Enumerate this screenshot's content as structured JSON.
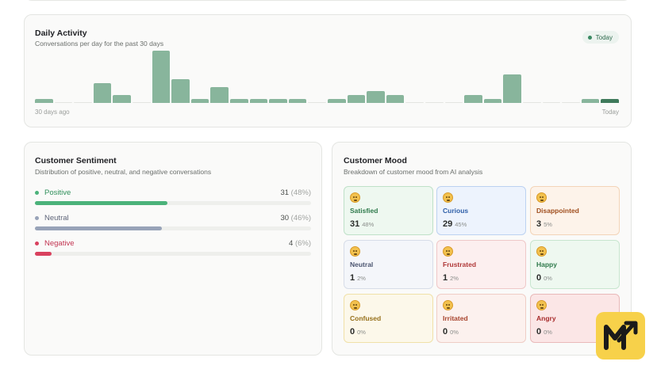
{
  "activity": {
    "title": "Daily Activity",
    "subtitle": "Conversations per day for the past 30 days",
    "badge": "Today",
    "axis_left": "30 days ago",
    "axis_right": "Today",
    "values": [
      1,
      0,
      0,
      5,
      2,
      0,
      13,
      6,
      1,
      4,
      1,
      1,
      1,
      1,
      0,
      1,
      2,
      3,
      2,
      0,
      0,
      0,
      2,
      1,
      7,
      0,
      0,
      0,
      1,
      1
    ],
    "max": 13
  },
  "sentiment": {
    "title": "Customer Sentiment",
    "subtitle": "Distribution of positive, neutral, and negative conversations",
    "rows": [
      {
        "label": "Positive",
        "count": "31",
        "pct": "(48%)",
        "fraction": 0.48,
        "color": "#4bb27a",
        "text_color": "#2f8f5a"
      },
      {
        "label": "Neutral",
        "count": "30",
        "pct": "(46%)",
        "fraction": 0.46,
        "color": "#98a3b8",
        "text_color": "#5d6478"
      },
      {
        "label": "Negative",
        "count": "4",
        "pct": "(6%)",
        "fraction": 0.06,
        "color": "#d9415e",
        "text_color": "#c23350"
      }
    ]
  },
  "mood": {
    "title": "Customer Mood",
    "subtitle": "Breakdown of customer mood from AI analysis",
    "tiles": [
      {
        "name": "Satisfied",
        "count": "31",
        "pct": "48%",
        "bg": "#eef8f0",
        "border": "#bfe1c8",
        "color": "#2e7a4b"
      },
      {
        "name": "Curious",
        "count": "29",
        "pct": "45%",
        "bg": "#edf3fd",
        "border": "#bcd2f1",
        "color": "#2e5ea8"
      },
      {
        "name": "Disappointed",
        "count": "3",
        "pct": "5%",
        "bg": "#fdf3ea",
        "border": "#f3d4b8",
        "color": "#a04e1e"
      },
      {
        "name": "Neutral",
        "count": "1",
        "pct": "2%",
        "bg": "#f4f6fa",
        "border": "#d7dde8",
        "color": "#4b5570"
      },
      {
        "name": "Frustrated",
        "count": "1",
        "pct": "2%",
        "bg": "#fcefef",
        "border": "#efc8c8",
        "color": "#b03838"
      },
      {
        "name": "Happy",
        "count": "0",
        "pct": "0%",
        "bg": "#eef8f0",
        "border": "#c8e6cf",
        "color": "#2e7a4b"
      },
      {
        "name": "Confused",
        "count": "0",
        "pct": "0%",
        "bg": "#fcf8ea",
        "border": "#f0e1a8",
        "color": "#96701a"
      },
      {
        "name": "Irritated",
        "count": "0",
        "pct": "0%",
        "bg": "#fcf1ee",
        "border": "#efcdc5",
        "color": "#a8442e"
      },
      {
        "name": "Angry",
        "count": "0",
        "pct": "0%",
        "bg": "#fbe6e6",
        "border": "#e9b9b9",
        "color": "#a82c2c"
      }
    ]
  },
  "colors": {
    "bar": "#88b59c",
    "bar_today": "#3f7a5b",
    "logo_bg": "#f7d14a"
  },
  "logo_icon": "m-trend-arrow-logo"
}
